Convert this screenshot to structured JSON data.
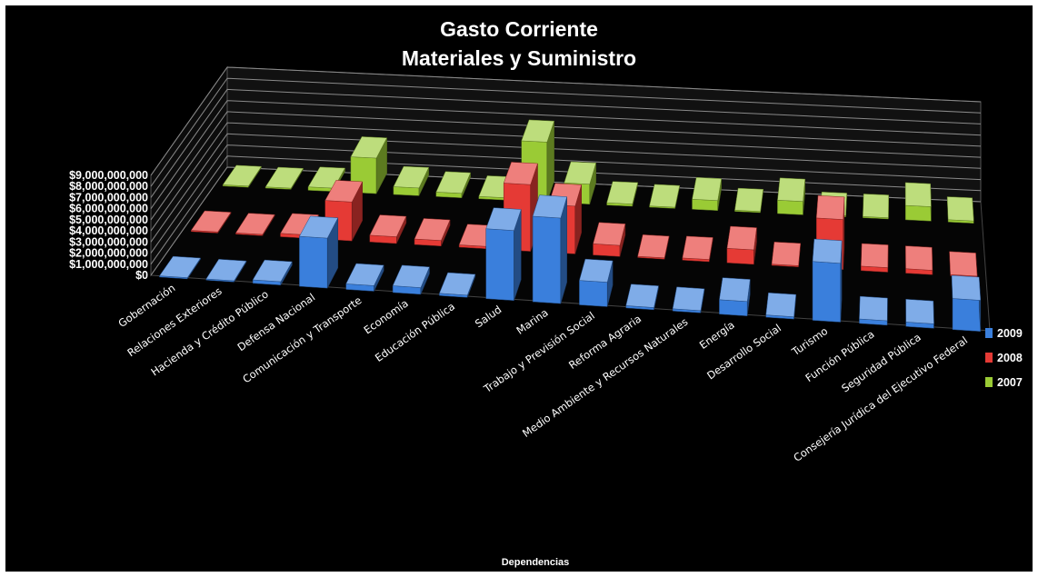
{
  "chart_data": {
    "type": "bar",
    "title": [
      "Gasto Corriente",
      "Materiales y Suministro"
    ],
    "xlabel": "Dependencias",
    "ylabel": "",
    "ylim": [
      0,
      9000000000
    ],
    "yticks": [
      "$0",
      "$1,000,000,000",
      "$2,000,000,000",
      "$3,000,000,000",
      "$4,000,000,000",
      "$5,000,000,000",
      "$6,000,000,000",
      "$7,000,000,000",
      "$8,000,000,000",
      "$9,000,000,000"
    ],
    "grid": true,
    "legend_position": "right",
    "categories": [
      "Gobernación",
      "Relaciones Exteriores",
      "Hacienda y Crédito Público",
      "Defensa Nacional",
      "Comunicación y Transporte",
      "Economía",
      "Educación Pública",
      "Salud",
      "Marina",
      "Trabajo y Previsión Social",
      "Reforma Agraria",
      "Medio Ambiente y Recursos Naturales",
      "Energía",
      "Desarrollo Social",
      "Turismo",
      "Función Pública",
      "Seguridad Pública",
      "Consejería Jurídica del Ejecutivo Federal"
    ],
    "series": [
      {
        "name": "2009",
        "color": "#3a7fdc",
        "values": [
          100000000,
          50000000,
          300000000,
          4500000000,
          500000000,
          600000000,
          200000000,
          6300000000,
          7700000000,
          2200000000,
          200000000,
          200000000,
          1300000000,
          200000000,
          5300000000,
          400000000,
          400000000,
          2800000000
        ]
      },
      {
        "name": "2008",
        "color": "#e53a35",
        "values": [
          100000000,
          50000000,
          300000000,
          3500000000,
          600000000,
          500000000,
          200000000,
          6000000000,
          4300000000,
          1000000000,
          100000000,
          200000000,
          1300000000,
          100000000,
          4500000000,
          400000000,
          400000000,
          100000000
        ]
      },
      {
        "name": "2007",
        "color": "#9acb35",
        "values": [
          100000000,
          50000000,
          300000000,
          3200000000,
          700000000,
          400000000,
          200000000,
          5400000000,
          1800000000,
          200000000,
          100000000,
          900000000,
          100000000,
          1200000000,
          100000000,
          100000000,
          1300000000,
          200000000
        ]
      }
    ]
  }
}
